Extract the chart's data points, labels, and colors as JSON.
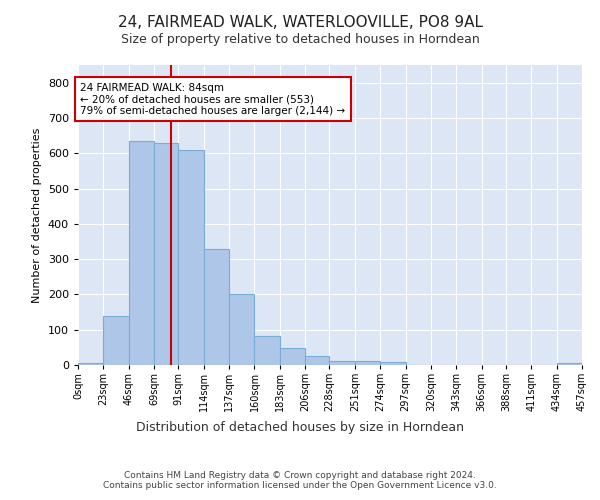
{
  "title": "24, FAIRMEAD WALK, WATERLOOVILLE, PO8 9AL",
  "subtitle": "Size of property relative to detached houses in Horndean",
  "xlabel": "Distribution of detached houses by size in Horndean",
  "ylabel": "Number of detached properties",
  "bin_edges": [
    0,
    23,
    46,
    69,
    91,
    114,
    137,
    160,
    183,
    206,
    228,
    251,
    274,
    297,
    320,
    343,
    366,
    388,
    411,
    434,
    457
  ],
  "bar_heights": [
    5,
    140,
    635,
    628,
    610,
    330,
    200,
    83,
    47,
    25,
    11,
    12,
    9,
    0,
    0,
    0,
    0,
    0,
    0,
    7
  ],
  "bar_color": "#aec6e8",
  "bar_edge_color": "#7aadd4",
  "property_size": 84,
  "property_line_color": "#cc0000",
  "annotation_text": "24 FAIRMEAD WALK: 84sqm\n← 20% of detached houses are smaller (553)\n79% of semi-detached houses are larger (2,144) →",
  "annotation_box_color": "#ffffff",
  "annotation_box_edge_color": "#cc0000",
  "ylim": [
    0,
    850
  ],
  "yticks": [
    0,
    100,
    200,
    300,
    400,
    500,
    600,
    700,
    800
  ],
  "background_color": "#dce6f5",
  "footer_text": "Contains HM Land Registry data © Crown copyright and database right 2024.\nContains public sector information licensed under the Open Government Licence v3.0.",
  "tick_labels": [
    "0sqm",
    "23sqm",
    "46sqm",
    "69sqm",
    "91sqm",
    "114sqm",
    "137sqm",
    "160sqm",
    "183sqm",
    "206sqm",
    "228sqm",
    "251sqm",
    "274sqm",
    "297sqm",
    "320sqm",
    "343sqm",
    "366sqm",
    "388sqm",
    "411sqm",
    "434sqm",
    "457sqm"
  ],
  "title_fontsize": 11,
  "subtitle_fontsize": 9,
  "ylabel_fontsize": 8,
  "xlabel_fontsize": 9,
  "tick_fontsize": 7,
  "footer_fontsize": 6.5,
  "annotation_fontsize": 7.5
}
